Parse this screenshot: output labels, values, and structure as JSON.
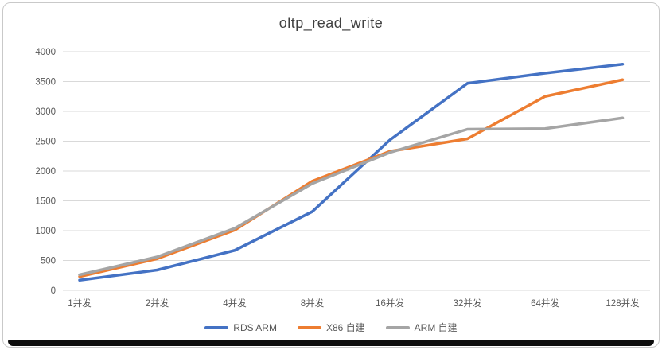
{
  "window": {
    "background": "#ffffff",
    "frame_border_color": "#c9c9c9",
    "bottom_bar_color": "#0d0d0d"
  },
  "chart_data": {
    "type": "line",
    "title": "oltp_read_write",
    "title_color": "#404040",
    "categories": [
      "1并发",
      "2并发",
      "4并发",
      "8并发",
      "16并发",
      "32并发",
      "64并发",
      "128并发"
    ],
    "series": [
      {
        "name": "RDS ARM",
        "color": "#4472C4",
        "values": [
          170,
          340,
          670,
          1320,
          2520,
          3470,
          3640,
          3790
        ]
      },
      {
        "name": "X86 自建",
        "color": "#ED7D31",
        "values": [
          230,
          530,
          1010,
          1830,
          2330,
          2540,
          3250,
          3530
        ]
      },
      {
        "name": "ARM 自建",
        "color": "#A5A5A5",
        "values": [
          260,
          560,
          1040,
          1790,
          2310,
          2700,
          2710,
          2890
        ]
      }
    ],
    "ylim": [
      0,
      4000
    ],
    "yticks": [
      0,
      500,
      1000,
      1500,
      2000,
      2500,
      3000,
      3500,
      4000
    ],
    "grid": true,
    "grid_color": "#D9D9D9",
    "axis_label_color": "#595959",
    "legend_position": "bottom",
    "line_width": 3.5
  }
}
